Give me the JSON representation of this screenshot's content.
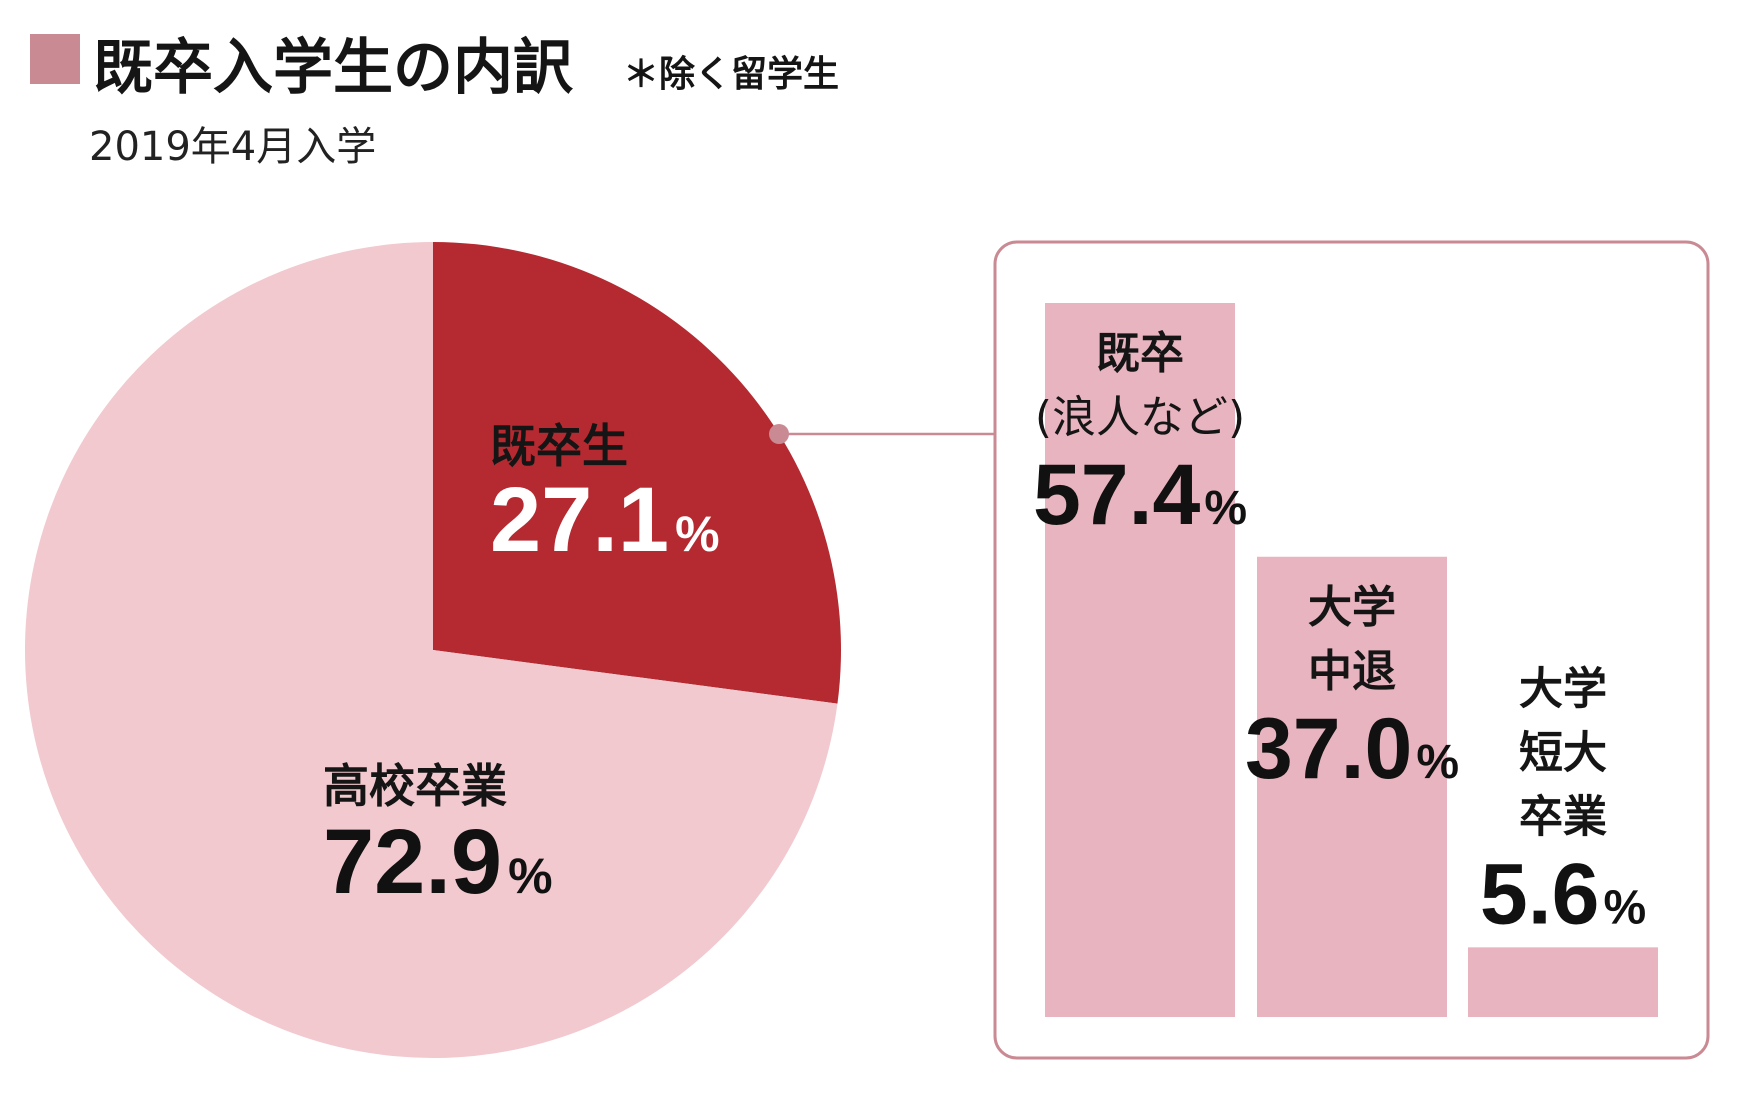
{
  "title": "既卒入学生の内訳",
  "note": "＊除く留学生",
  "subtitle": "2019年4月入学",
  "colors": {
    "marker": "#c98a93",
    "connector": "#c98a93",
    "box_border": "#c98a93"
  },
  "chart_data": [
    {
      "type": "pie",
      "unit": "%",
      "slices": [
        {
          "label": "既卒生",
          "value": 27.1,
          "color": "#b52a31"
        },
        {
          "label": "高校卒業",
          "value": 72.9,
          "color": "#f1c9cf"
        }
      ]
    },
    {
      "type": "bar",
      "unit": "%",
      "categories": [
        [
          "既卒",
          "(浪人など)"
        ],
        [
          "大学",
          "中退"
        ],
        [
          "大学",
          "短大",
          "卒業"
        ]
      ],
      "values": [
        57.4,
        37.0,
        5.6
      ],
      "color": "#e8b4c0"
    }
  ]
}
